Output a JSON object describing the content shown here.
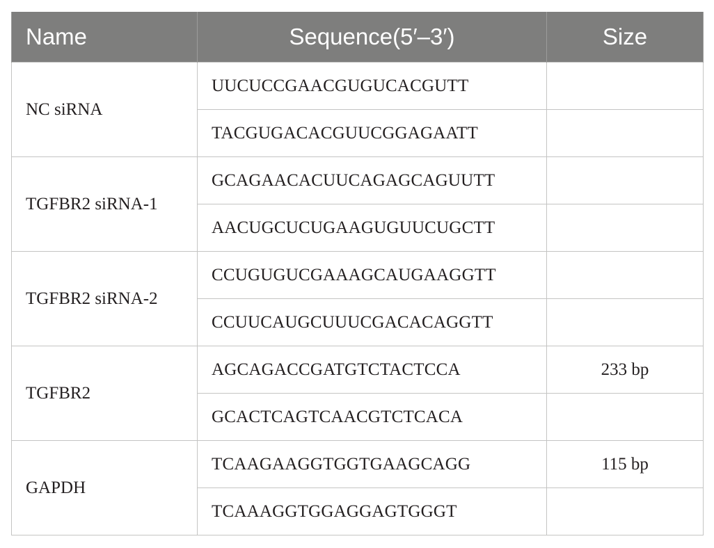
{
  "table": {
    "headers": {
      "name": "Name",
      "sequence": "Sequence(5′–3′)",
      "size": "Size"
    },
    "rows": [
      {
        "name": "NC siRNA",
        "sequences": [
          "UUCUCCGAACGUGUCACGUTT",
          "TACGUGACACGUUCGGAGAATT"
        ],
        "sizes": [
          "",
          ""
        ]
      },
      {
        "name": "TGFBR2 siRNA-1",
        "sequences": [
          "GCAGAACACUUCAGAGCAGUUTT",
          "AACUGCUCUGAAGUGUUCUGCTT"
        ],
        "sizes": [
          "",
          ""
        ]
      },
      {
        "name": "TGFBR2 siRNA-2",
        "sequences": [
          "CCUGUGUCGAAAGCAUGAAGGTT",
          "CCUUCAUGCUUUCGACACAGGTT"
        ],
        "sizes": [
          "",
          ""
        ]
      },
      {
        "name": "TGFBR2",
        "sequences": [
          "AGCAGACCGATGTCTACTCCA",
          "GCACTCAGTCAACGTCTCACA"
        ],
        "sizes": [
          "233 bp",
          ""
        ]
      },
      {
        "name": "GAPDH",
        "sequences": [
          "TCAAGAAGGTGGTGAAGCAGG",
          "TCAAAGGTGGAGGAGTGGGT"
        ],
        "sizes": [
          "115 bp",
          ""
        ]
      }
    ]
  }
}
